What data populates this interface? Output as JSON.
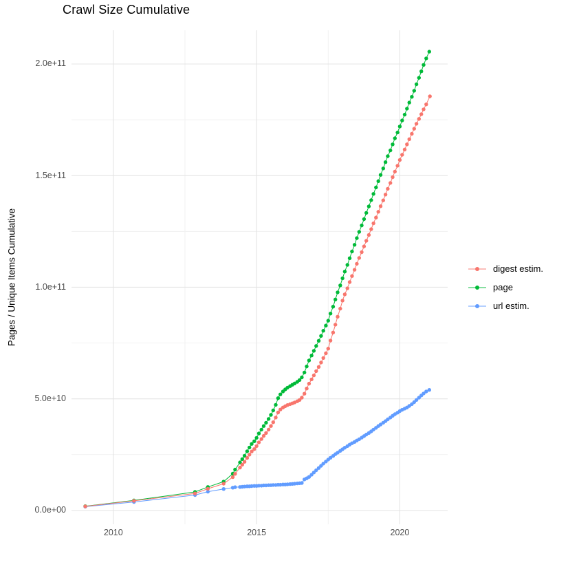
{
  "chart_data": {
    "type": "line",
    "marker": "point",
    "title": "Crawl Size Cumulative",
    "xlabel": "",
    "ylabel": "Pages / Unique Items Cumulative",
    "y_unit_multiplier": 1000000000.0,
    "grid": "on",
    "legend_position": "right",
    "x_axis": {
      "range": [
        2008.54,
        2021.67
      ],
      "ticks": [
        2010,
        2015,
        2020
      ],
      "tick_labels": [
        "2010",
        "2015",
        "2020"
      ],
      "minor_ticks": [
        2012.5,
        2017.5
      ]
    },
    "y_axis": {
      "range": [
        -6.2,
        215.1
      ],
      "ticks": [
        0,
        50,
        100,
        150,
        200
      ],
      "tick_labels": [
        "0.0e+00",
        "5.0e+10",
        "1.0e+11",
        "1.5e+11",
        "2.0e+11"
      ],
      "minor_ticks": [
        25,
        75,
        125,
        175
      ]
    },
    "series": [
      {
        "name": "url estim.",
        "color": "#619CFF",
        "points": [
          [
            2009.02,
            1.7
          ],
          [
            2010.72,
            3.8
          ],
          [
            2012.85,
            6.9
          ],
          [
            2013.3,
            8.4
          ],
          [
            2013.85,
            9.6
          ],
          [
            2014.17,
            10.2
          ],
          [
            2014.25,
            10.4
          ],
          [
            2014.42,
            10.5
          ],
          [
            2014.5,
            10.6
          ],
          [
            2014.58,
            10.7
          ],
          [
            2014.67,
            10.8
          ],
          [
            2014.75,
            10.8
          ],
          [
            2014.83,
            10.9
          ],
          [
            2014.92,
            11.0
          ],
          [
            2015.0,
            11.0
          ],
          [
            2015.08,
            11.1
          ],
          [
            2015.17,
            11.1
          ],
          [
            2015.25,
            11.2
          ],
          [
            2015.33,
            11.2
          ],
          [
            2015.42,
            11.3
          ],
          [
            2015.5,
            11.3
          ],
          [
            2015.58,
            11.4
          ],
          [
            2015.67,
            11.4
          ],
          [
            2015.75,
            11.5
          ],
          [
            2015.83,
            11.5
          ],
          [
            2015.92,
            11.6
          ],
          [
            2016.0,
            11.6
          ],
          [
            2016.08,
            11.7
          ],
          [
            2016.17,
            11.8
          ],
          [
            2016.25,
            11.9
          ],
          [
            2016.33,
            12.0
          ],
          [
            2016.42,
            12.1
          ],
          [
            2016.5,
            12.2
          ],
          [
            2016.58,
            12.3
          ],
          [
            2016.67,
            13.9
          ],
          [
            2016.75,
            14.4
          ],
          [
            2016.83,
            15.0
          ],
          [
            2016.92,
            16.0
          ],
          [
            2017.0,
            17.0
          ],
          [
            2017.08,
            18.0
          ],
          [
            2017.17,
            19.0
          ],
          [
            2017.25,
            20.0
          ],
          [
            2017.33,
            21.0
          ],
          [
            2017.42,
            21.9
          ],
          [
            2017.5,
            22.8
          ],
          [
            2017.58,
            23.6
          ],
          [
            2017.67,
            24.4
          ],
          [
            2017.75,
            25.2
          ],
          [
            2017.83,
            25.9
          ],
          [
            2017.92,
            26.7
          ],
          [
            2018.0,
            27.4
          ],
          [
            2018.08,
            28.1
          ],
          [
            2018.17,
            28.8
          ],
          [
            2018.25,
            29.5
          ],
          [
            2018.33,
            30.1
          ],
          [
            2018.42,
            30.7
          ],
          [
            2018.5,
            31.3
          ],
          [
            2018.58,
            31.9
          ],
          [
            2018.67,
            32.6
          ],
          [
            2018.75,
            33.3
          ],
          [
            2018.83,
            34.0
          ],
          [
            2018.92,
            34.7
          ],
          [
            2019.0,
            35.4
          ],
          [
            2019.08,
            36.2
          ],
          [
            2019.17,
            37.0
          ],
          [
            2019.25,
            37.8
          ],
          [
            2019.33,
            38.5
          ],
          [
            2019.42,
            39.3
          ],
          [
            2019.5,
            40.0
          ],
          [
            2019.58,
            40.8
          ],
          [
            2019.67,
            41.6
          ],
          [
            2019.75,
            42.4
          ],
          [
            2019.83,
            43.1
          ],
          [
            2019.92,
            43.8
          ],
          [
            2020.0,
            44.5
          ],
          [
            2020.08,
            45.1
          ],
          [
            2020.17,
            45.6
          ],
          [
            2020.25,
            46.1
          ],
          [
            2020.33,
            46.8
          ],
          [
            2020.42,
            47.6
          ],
          [
            2020.5,
            48.5
          ],
          [
            2020.58,
            49.5
          ],
          [
            2020.67,
            50.5
          ],
          [
            2020.75,
            51.5
          ],
          [
            2020.83,
            52.4
          ],
          [
            2020.92,
            53.3
          ],
          [
            2021.03,
            54.0
          ]
        ]
      },
      {
        "name": "page",
        "color": "#00BA38",
        "points": [
          [
            2009.02,
            1.9
          ],
          [
            2010.72,
            4.5
          ],
          [
            2012.85,
            8.3
          ],
          [
            2013.3,
            10.5
          ],
          [
            2013.85,
            12.9
          ],
          [
            2014.17,
            16.5
          ],
          [
            2014.25,
            18.3
          ],
          [
            2014.42,
            21.5
          ],
          [
            2014.5,
            23.0
          ],
          [
            2014.58,
            24.5
          ],
          [
            2014.67,
            26.5
          ],
          [
            2014.75,
            28.2
          ],
          [
            2014.83,
            29.8
          ],
          [
            2014.92,
            31.0
          ],
          [
            2015.0,
            32.5
          ],
          [
            2015.08,
            34.5
          ],
          [
            2015.17,
            36.2
          ],
          [
            2015.25,
            37.8
          ],
          [
            2015.33,
            39.3
          ],
          [
            2015.42,
            41.0
          ],
          [
            2015.5,
            42.8
          ],
          [
            2015.58,
            44.8
          ],
          [
            2015.67,
            47.3
          ],
          [
            2015.75,
            50.3
          ],
          [
            2015.83,
            52.0
          ],
          [
            2015.92,
            53.3
          ],
          [
            2016.0,
            54.2
          ],
          [
            2016.08,
            55.0
          ],
          [
            2016.17,
            55.7
          ],
          [
            2016.25,
            56.3
          ],
          [
            2016.33,
            56.9
          ],
          [
            2016.42,
            57.6
          ],
          [
            2016.5,
            58.4
          ],
          [
            2016.58,
            59.6
          ],
          [
            2016.67,
            61.8
          ],
          [
            2016.75,
            64.5
          ],
          [
            2016.83,
            67.2
          ],
          [
            2016.92,
            69.4
          ],
          [
            2017.0,
            71.5
          ],
          [
            2017.08,
            73.7
          ],
          [
            2017.17,
            76.0
          ],
          [
            2017.25,
            78.2
          ],
          [
            2017.33,
            80.5
          ],
          [
            2017.42,
            82.8
          ],
          [
            2017.5,
            85.0
          ],
          [
            2017.58,
            88.2
          ],
          [
            2017.67,
            91.3
          ],
          [
            2017.75,
            94.5
          ],
          [
            2017.83,
            97.7
          ],
          [
            2017.92,
            100.8
          ],
          [
            2018.0,
            104.0
          ],
          [
            2018.08,
            107.0
          ],
          [
            2018.17,
            110.0
          ],
          [
            2018.25,
            113.0
          ],
          [
            2018.33,
            116.0
          ],
          [
            2018.42,
            119.0
          ],
          [
            2018.5,
            122.0
          ],
          [
            2018.58,
            124.8
          ],
          [
            2018.67,
            127.7
          ],
          [
            2018.75,
            130.5
          ],
          [
            2018.83,
            133.3
          ],
          [
            2018.92,
            136.2
          ],
          [
            2019.0,
            139.0
          ],
          [
            2019.08,
            141.8
          ],
          [
            2019.17,
            144.7
          ],
          [
            2019.25,
            147.5
          ],
          [
            2019.33,
            150.3
          ],
          [
            2019.42,
            153.2
          ],
          [
            2019.5,
            156.0
          ],
          [
            2019.58,
            158.7
          ],
          [
            2019.67,
            161.3
          ],
          [
            2019.75,
            164.0
          ],
          [
            2019.83,
            166.7
          ],
          [
            2019.92,
            169.3
          ],
          [
            2020.0,
            172.0
          ],
          [
            2020.08,
            174.7
          ],
          [
            2020.17,
            177.3
          ],
          [
            2020.25,
            180.0
          ],
          [
            2020.33,
            182.7
          ],
          [
            2020.42,
            185.3
          ],
          [
            2020.5,
            188.0
          ],
          [
            2020.58,
            190.9
          ],
          [
            2020.67,
            193.8
          ],
          [
            2020.75,
            196.7
          ],
          [
            2020.83,
            199.6
          ],
          [
            2020.92,
            202.5
          ],
          [
            2021.03,
            205.5
          ]
        ]
      },
      {
        "name": "digest estim.",
        "color": "#F8766D",
        "points": [
          [
            2009.02,
            1.8
          ],
          [
            2010.72,
            4.3
          ],
          [
            2012.85,
            7.6
          ],
          [
            2013.3,
            9.7
          ],
          [
            2013.85,
            12.0
          ],
          [
            2014.17,
            14.9
          ],
          [
            2014.25,
            16.4
          ],
          [
            2014.42,
            19.2
          ],
          [
            2014.5,
            20.5
          ],
          [
            2014.58,
            21.8
          ],
          [
            2014.67,
            23.5
          ],
          [
            2014.75,
            25.0
          ],
          [
            2014.83,
            26.4
          ],
          [
            2014.92,
            27.5
          ],
          [
            2015.0,
            28.8
          ],
          [
            2015.08,
            30.5
          ],
          [
            2015.17,
            32.0
          ],
          [
            2015.25,
            33.4
          ],
          [
            2015.33,
            34.7
          ],
          [
            2015.42,
            36.2
          ],
          [
            2015.5,
            37.8
          ],
          [
            2015.58,
            39.5
          ],
          [
            2015.67,
            41.6
          ],
          [
            2015.75,
            43.9
          ],
          [
            2015.83,
            45.2
          ],
          [
            2015.92,
            46.1
          ],
          [
            2016.0,
            46.7
          ],
          [
            2016.08,
            47.2
          ],
          [
            2016.17,
            47.6
          ],
          [
            2016.25,
            48.0
          ],
          [
            2016.33,
            48.4
          ],
          [
            2016.42,
            48.9
          ],
          [
            2016.5,
            49.5
          ],
          [
            2016.58,
            50.5
          ],
          [
            2016.67,
            52.3
          ],
          [
            2016.75,
            54.6
          ],
          [
            2016.83,
            56.8
          ],
          [
            2016.92,
            58.7
          ],
          [
            2017.0,
            60.5
          ],
          [
            2017.08,
            62.4
          ],
          [
            2017.17,
            64.3
          ],
          [
            2017.25,
            66.3
          ],
          [
            2017.33,
            68.3
          ],
          [
            2017.42,
            70.4
          ],
          [
            2017.5,
            72.5
          ],
          [
            2017.58,
            76.1
          ],
          [
            2017.67,
            79.7
          ],
          [
            2017.75,
            83.2
          ],
          [
            2017.83,
            86.8
          ],
          [
            2017.92,
            90.4
          ],
          [
            2018.0,
            94.0
          ],
          [
            2018.08,
            96.8
          ],
          [
            2018.17,
            99.5
          ],
          [
            2018.25,
            102.3
          ],
          [
            2018.33,
            105.0
          ],
          [
            2018.42,
            107.8
          ],
          [
            2018.5,
            110.5
          ],
          [
            2018.58,
            113.1
          ],
          [
            2018.67,
            115.7
          ],
          [
            2018.75,
            118.3
          ],
          [
            2018.83,
            120.8
          ],
          [
            2018.92,
            123.4
          ],
          [
            2019.0,
            126.0
          ],
          [
            2019.08,
            128.6
          ],
          [
            2019.17,
            131.2
          ],
          [
            2019.25,
            133.8
          ],
          [
            2019.33,
            136.3
          ],
          [
            2019.42,
            138.9
          ],
          [
            2019.5,
            141.5
          ],
          [
            2019.58,
            144.1
          ],
          [
            2019.67,
            146.7
          ],
          [
            2019.75,
            149.3
          ],
          [
            2019.83,
            151.8
          ],
          [
            2019.92,
            154.4
          ],
          [
            2020.0,
            157.0
          ],
          [
            2020.08,
            159.3
          ],
          [
            2020.17,
            161.7
          ],
          [
            2020.25,
            164.0
          ],
          [
            2020.33,
            166.3
          ],
          [
            2020.42,
            168.7
          ],
          [
            2020.5,
            171.0
          ],
          [
            2020.58,
            173.2
          ],
          [
            2020.67,
            175.4
          ],
          [
            2020.75,
            177.5
          ],
          [
            2020.83,
            179.7
          ],
          [
            2020.92,
            181.9
          ],
          [
            2021.05,
            185.5
          ]
        ]
      }
    ],
    "legend_order": [
      "digest estim.",
      "page",
      "url estim."
    ]
  }
}
